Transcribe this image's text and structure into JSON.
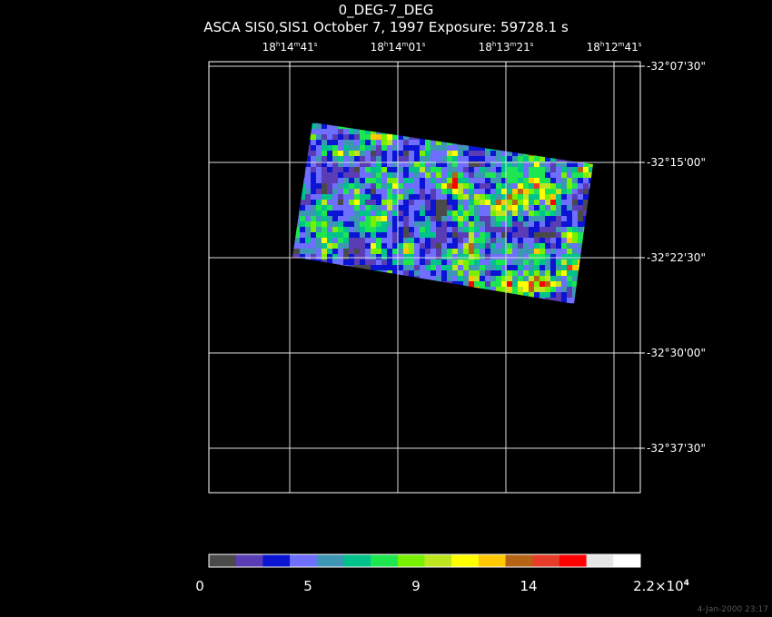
{
  "titles": {
    "line1": "0_DEG-7_DEG",
    "line2": "ASCA SIS0,SIS1 October 7, 1997 Exposure: 59728.1 s"
  },
  "ra_labels": [
    {
      "h": "18",
      "m": "14",
      "s": "41"
    },
    {
      "h": "18",
      "m": "14",
      "s": "01"
    },
    {
      "h": "18",
      "m": "13",
      "s": "21"
    },
    {
      "h": "18",
      "m": "12",
      "s": "41"
    }
  ],
  "dec_labels": [
    "-32°07'30\"",
    "-32°15'00\"",
    "-32°22'30\"",
    "-32°30'00\"",
    "-32°37'30\""
  ],
  "colorbar": {
    "colors": [
      "#4a4a4a",
      "#5a3cb4",
      "#0a14d2",
      "#6e6eff",
      "#3c96b4",
      "#00c38c",
      "#1ee650",
      "#78f000",
      "#bee61e",
      "#ffff00",
      "#ffc800",
      "#b46414",
      "#e63c28",
      "#ff0000",
      "#e6e6e6",
      "#ffffff"
    ],
    "tick_labels": [
      "0",
      "5",
      "9",
      "14",
      "2.2×10"
    ],
    "exponent": "4"
  },
  "timestamp": "4-Jan-2000 23:17",
  "chart_data": {
    "type": "heatmap",
    "title": "0_DEG-7_DEG",
    "subtitle": "ASCA SIS0,SIS1 October 7, 1997 Exposure: 59728.1 s",
    "x_ticks": [
      "18h14m41s",
      "18h14m01s",
      "18h13m21s",
      "18h12m41s"
    ],
    "y_ticks": [
      "-32°07'30\"",
      "-32°15'00\"",
      "-32°22'30\"",
      "-32°30'00\"",
      "-32°37'30\""
    ],
    "colorbar_ticks": [
      "0",
      "5",
      "9",
      "14",
      "2.2×10^4"
    ],
    "colorbar_range": [
      0,
      22000
    ],
    "grid": true
  }
}
